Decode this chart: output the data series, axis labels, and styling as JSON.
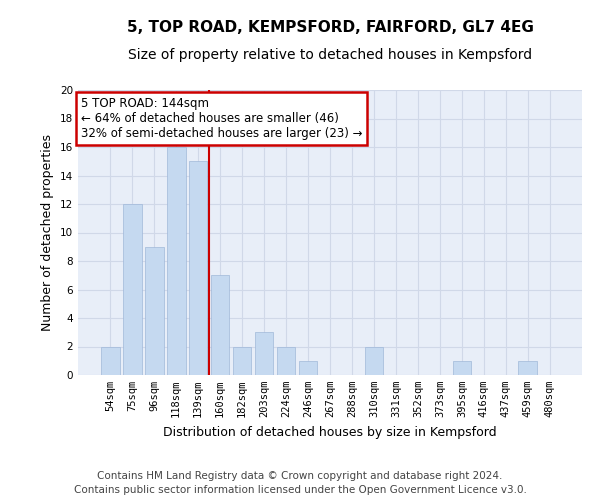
{
  "title": "5, TOP ROAD, KEMPSFORD, FAIRFORD, GL7 4EG",
  "subtitle": "Size of property relative to detached houses in Kempsford",
  "xlabel": "Distribution of detached houses by size in Kempsford",
  "ylabel": "Number of detached properties",
  "categories": [
    "54sqm",
    "75sqm",
    "96sqm",
    "118sqm",
    "139sqm",
    "160sqm",
    "182sqm",
    "203sqm",
    "224sqm",
    "246sqm",
    "267sqm",
    "288sqm",
    "310sqm",
    "331sqm",
    "352sqm",
    "373sqm",
    "395sqm",
    "416sqm",
    "437sqm",
    "459sqm",
    "480sqm"
  ],
  "values": [
    2,
    12,
    9,
    16,
    15,
    7,
    2,
    3,
    2,
    1,
    0,
    0,
    2,
    0,
    0,
    0,
    1,
    0,
    0,
    1,
    0
  ],
  "bar_color": "#c5d9f0",
  "bar_edge_color": "#a0b8d8",
  "vline_x_index": 4.5,
  "vline_color": "#cc0000",
  "annotation_line1": "5 TOP ROAD: 144sqm",
  "annotation_line2": "← 64% of detached houses are smaller (46)",
  "annotation_line3": "32% of semi-detached houses are larger (23) →",
  "annotation_box_color": "#cc0000",
  "ylim": [
    0,
    20
  ],
  "yticks": [
    0,
    2,
    4,
    6,
    8,
    10,
    12,
    14,
    16,
    18,
    20
  ],
  "grid_color": "#d0d8e8",
  "background_color": "#e8eef8",
  "footer_text": "Contains HM Land Registry data © Crown copyright and database right 2024.\nContains public sector information licensed under the Open Government Licence v3.0.",
  "title_fontsize": 11,
  "subtitle_fontsize": 10,
  "xlabel_fontsize": 9,
  "ylabel_fontsize": 9,
  "tick_fontsize": 7.5,
  "annotation_fontsize": 8.5,
  "footer_fontsize": 7.5
}
